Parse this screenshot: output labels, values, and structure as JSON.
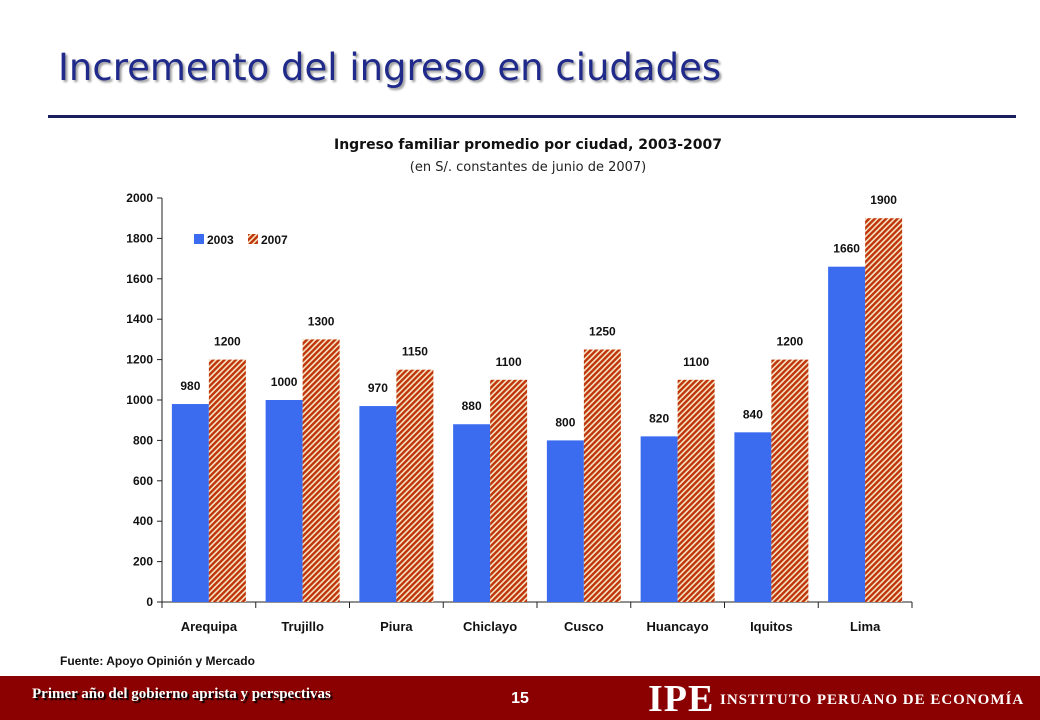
{
  "slide": {
    "title": "Incremento del ingreso en ciudades",
    "source": "Fuente: Apoyo Opinión y Mercado"
  },
  "footer": {
    "text": "Primer año del gobierno aprista y perspectivas",
    "page_number": "15",
    "logo": "IPE",
    "institution": "INSTITUTO PERUANO DE ECONOMÍA"
  },
  "colors": {
    "series_2003": "#3b6cf0",
    "series_2007_stripe_a": "#c0330b",
    "series_2007_stripe_b": "#f4e7c3",
    "title": "#1f2a8a",
    "footer": "#8b0000"
  },
  "chart_data": {
    "type": "bar",
    "title": "Ingreso familiar promedio por ciudad, 2003-2007",
    "subtitle": "(en S/. constantes de junio de 2007)",
    "categories": [
      "Arequipa",
      "Trujillo",
      "Piura",
      "Chiclayo",
      "Cusco",
      "Huancayo",
      "Iquitos",
      "Lima"
    ],
    "series": [
      {
        "name": "2003",
        "values": [
          980,
          1000,
          970,
          880,
          800,
          820,
          840,
          1660
        ]
      },
      {
        "name": "2007",
        "values": [
          1200,
          1300,
          1150,
          1100,
          1250,
          1100,
          1200,
          1900
        ]
      }
    ],
    "ylim": [
      0,
      2000
    ],
    "yticks": [
      0,
      200,
      400,
      600,
      800,
      1000,
      1200,
      1400,
      1600,
      1800,
      2000
    ],
    "grid": false,
    "legend_position": "top-left"
  }
}
